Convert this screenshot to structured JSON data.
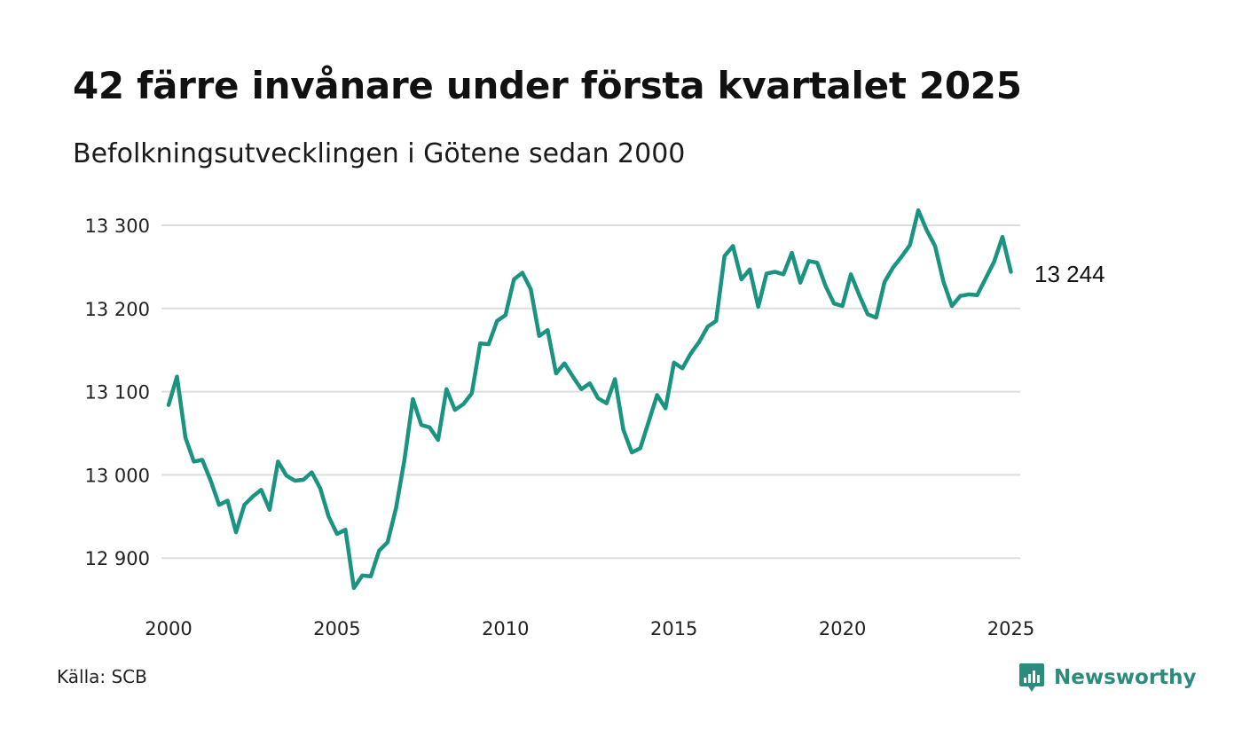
{
  "title": "42 färre invånare under första kvartalet 2025",
  "subtitle": "Befolkningsutvecklingen i Götene sedan 2000",
  "source": "Källa: SCB",
  "brand": {
    "name": "Newsworthy",
    "icon": "newsworthy-logo-icon",
    "color": "#2c8c7c"
  },
  "colors": {
    "line": "#1a9480",
    "grid": "#dddddd",
    "text": "#111111"
  },
  "chart_data": {
    "type": "line",
    "title": "42 färre invånare under första kvartalet 2025",
    "subtitle": "Befolkningsutvecklingen i Götene sedan 2000",
    "xlabel": "",
    "ylabel": "",
    "x_ticks": [
      "2000",
      "2005",
      "2010",
      "2015",
      "2020",
      "2025"
    ],
    "y_ticks": [
      "12 900",
      "13 000",
      "13 100",
      "13 200",
      "13 300"
    ],
    "y_tick_values": [
      12900,
      13000,
      13100,
      13200,
      13300
    ],
    "xlim": [
      2000,
      2025.25
    ],
    "ylim": [
      12850,
      13330
    ],
    "grid": true,
    "end_label": "13 244",
    "series": [
      {
        "values": [
          13084,
          13118,
          13045,
          13016,
          13018,
          12993,
          12964,
          12969,
          12931,
          12964,
          12974,
          12982,
          12958,
          13016,
          12999,
          12993,
          12994,
          13003,
          12984,
          12950,
          12929,
          12934,
          12864,
          12879,
          12878,
          12909,
          12919,
          12960,
          13018,
          13091,
          13060,
          13057,
          13042,
          13103,
          13078,
          13085,
          13098,
          13158,
          13157,
          13185,
          13192,
          13235,
          13243,
          13223,
          13167,
          13174,
          13122,
          13134,
          13118,
          13103,
          13110,
          13092,
          13086,
          13115,
          13054,
          13027,
          13032,
          13064,
          13096,
          13080,
          13135,
          13128,
          13146,
          13160,
          13178,
          13185,
          13263,
          13275,
          13235,
          13247,
          13202,
          13242,
          13244,
          13241,
          13267,
          13231,
          13257,
          13255,
          13227,
          13206,
          13203,
          13241,
          13216,
          13193,
          13189,
          13232,
          13249,
          13262,
          13276,
          13318,
          13294,
          13275,
          13232,
          13203,
          13215,
          13217,
          13216,
          13236,
          13256,
          13286,
          13244
        ]
      }
    ]
  }
}
